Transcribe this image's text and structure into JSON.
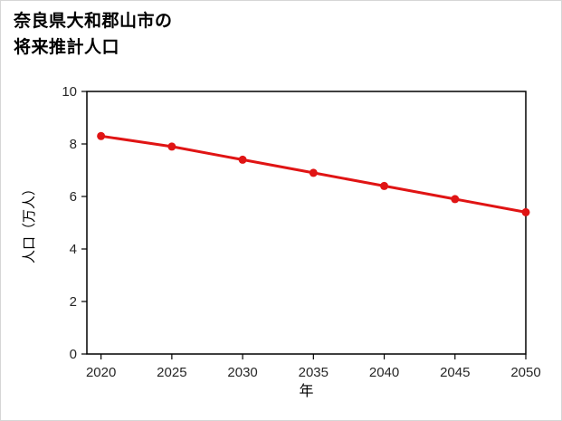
{
  "chart_data": {
    "type": "line",
    "title_lines": [
      "奈良県大和郡山市の",
      "将来推計人口"
    ],
    "xlabel": "年",
    "ylabel": "人口（万人）",
    "x": [
      2020,
      2025,
      2030,
      2035,
      2040,
      2045,
      2050
    ],
    "series": [
      {
        "name": "将来推計人口",
        "values": [
          8.3,
          7.9,
          7.4,
          6.9,
          6.4,
          5.9,
          5.4
        ]
      }
    ],
    "x_ticks": [
      "2020",
      "2025",
      "2030",
      "2035",
      "2040",
      "2045",
      "2050"
    ],
    "y_ticks": [
      "0",
      "2",
      "4",
      "6",
      "8",
      "10"
    ],
    "xlim": [
      2019,
      2050
    ],
    "ylim": [
      0,
      10
    ],
    "grid": false,
    "legend": false,
    "line_color": "#e01414",
    "axis_color": "#000000",
    "tick_label_color": "#262626"
  }
}
